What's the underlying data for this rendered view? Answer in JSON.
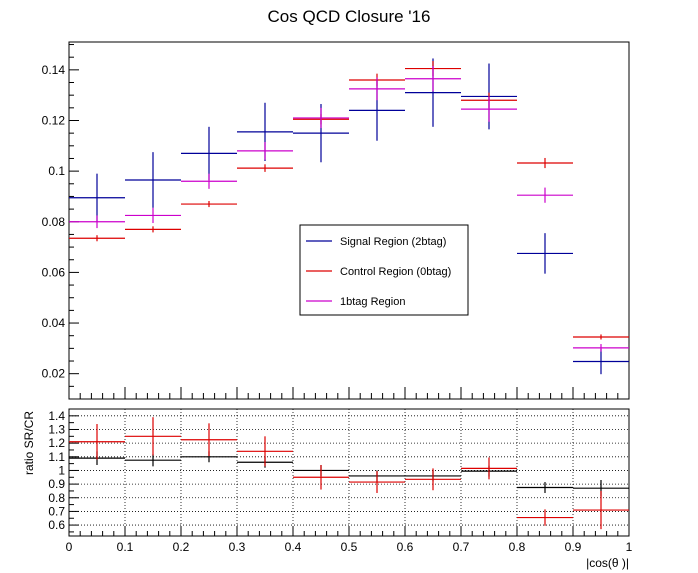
{
  "chart_data": [
    {
      "type": "scatter",
      "title": "Cos QCD Closure '16",
      "xlabel": "",
      "ylabel": "",
      "xlim": [
        0,
        1
      ],
      "ylim": [
        0.01,
        0.151
      ],
      "yticks": [
        "0.02",
        "0.04",
        "0.06",
        "0.08",
        "0.1",
        "0.12",
        "0.14"
      ],
      "grid": false,
      "legend_position": "center-right",
      "x": [
        0.05,
        0.15,
        0.25,
        0.35,
        0.45,
        0.55,
        0.65,
        0.75,
        0.85,
        0.95
      ],
      "x_halfwidth": 0.05,
      "series": [
        {
          "name": "Signal Region (2btag)",
          "color": "#000099",
          "values": [
            0.0895,
            0.0965,
            0.107,
            0.1155,
            0.115,
            0.124,
            0.131,
            0.1295,
            0.0675,
            0.0248
          ],
          "errors": [
            0.0095,
            0.011,
            0.0105,
            0.0115,
            0.0115,
            0.012,
            0.0135,
            0.013,
            0.008,
            0.005
          ]
        },
        {
          "name": "Control Region (0btag)",
          "color": "#dd0000",
          "values": [
            0.0735,
            0.077,
            0.087,
            0.1012,
            0.1205,
            0.136,
            0.1405,
            0.128,
            0.1032,
            0.0345
          ],
          "errors": [
            0.0012,
            0.0012,
            0.0012,
            0.0015,
            0.002,
            0.0025,
            0.003,
            0.003,
            0.002,
            0.001
          ]
        },
        {
          "name": "1btag Region",
          "color": "#cc00cc",
          "values": [
            0.08,
            0.0825,
            0.096,
            0.108,
            0.121,
            0.1325,
            0.1365,
            0.1245,
            0.0905,
            0.0302
          ],
          "errors": [
            0.0025,
            0.003,
            0.003,
            0.0035,
            0.004,
            0.0045,
            0.005,
            0.005,
            0.003,
            0.0015
          ]
        }
      ]
    },
    {
      "type": "scatter",
      "title": "",
      "xlabel": "|cos(θ )|",
      "ylabel": "ratio SR/CR",
      "xlim": [
        0,
        1
      ],
      "ylim": [
        0.52,
        1.45
      ],
      "xticks": [
        "0",
        "0.1",
        "0.2",
        "0.3",
        "0.4",
        "0.5",
        "0.6",
        "0.7",
        "0.8",
        "0.9",
        "1"
      ],
      "yticks": [
        "0.6",
        "0.7",
        "0.8",
        "0.9",
        "1",
        "1.1",
        "1.2",
        "1.3",
        "1.4"
      ],
      "grid": true,
      "x": [
        0.05,
        0.15,
        0.25,
        0.35,
        0.45,
        0.55,
        0.65,
        0.75,
        0.85,
        0.95
      ],
      "x_halfwidth": 0.05,
      "series": [
        {
          "color": "#000000",
          "values": [
            1.09,
            1.075,
            1.1,
            1.06,
            1.0,
            0.96,
            0.96,
            0.995,
            0.875,
            0.87
          ],
          "errors": [
            0.05,
            0.045,
            0.04,
            0.04,
            0.04,
            0.04,
            0.04,
            0.04,
            0.04,
            0.06
          ]
        },
        {
          "color": "#dd0000",
          "values": [
            1.21,
            1.25,
            1.225,
            1.14,
            0.95,
            0.915,
            0.935,
            1.015,
            0.655,
            0.71
          ],
          "errors": [
            0.13,
            0.14,
            0.12,
            0.11,
            0.09,
            0.08,
            0.08,
            0.08,
            0.06,
            0.14
          ]
        }
      ]
    }
  ]
}
